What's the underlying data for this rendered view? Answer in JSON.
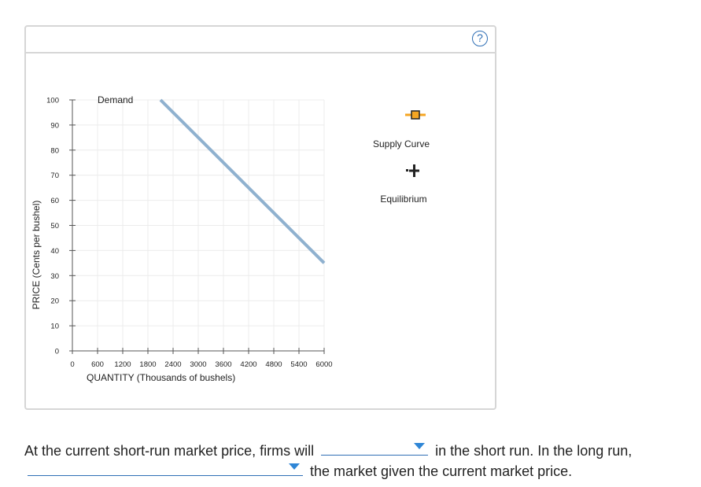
{
  "panel": {
    "help_icon": "question-circle-icon",
    "help_label": "?"
  },
  "chart_data": {
    "type": "line",
    "xlabel": "QUANTITY (Thousands of bushels)",
    "ylabel": "PRICE (Cents per bushel)",
    "xlim": [
      0,
      6000
    ],
    "ylim": [
      0,
      100
    ],
    "x_ticks": [
      0,
      600,
      1200,
      1800,
      2400,
      3000,
      3600,
      4200,
      4800,
      5400,
      6000
    ],
    "y_ticks": [
      0,
      10,
      20,
      30,
      40,
      50,
      60,
      70,
      80,
      90,
      100
    ],
    "grid": true,
    "series": [
      {
        "name": "Demand",
        "color": "#8fb1cf",
        "points": [
          [
            2100,
            100
          ],
          [
            6000,
            35
          ]
        ]
      }
    ]
  },
  "legend": {
    "supply_label": "Supply Curve",
    "supply_icon": "orange-square-line-marker-icon",
    "supply_color": "#f5a623",
    "equilibrium_label": "Equilibrium",
    "equilibrium_icon": "black-plus-marker-icon"
  },
  "question": {
    "part1": "At the current short-run market price, firms will",
    "part2": "in the short run. In the long run,",
    "part3": "the market given the current market price.",
    "dropdown1_value": "",
    "dropdown2_value": ""
  }
}
